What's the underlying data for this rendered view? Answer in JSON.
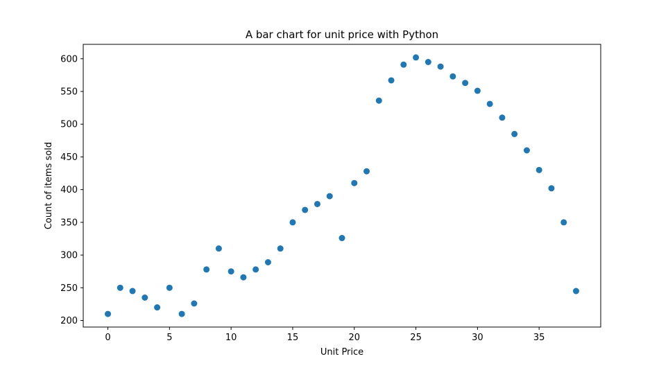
{
  "chart_data": {
    "type": "scatter",
    "title": "A bar chart for unit price with Python",
    "xlabel": "Unit Price",
    "ylabel": "Count of items sold",
    "xlim": [
      -2,
      40
    ],
    "ylim": [
      190,
      622
    ],
    "xticks": [
      0,
      5,
      10,
      15,
      20,
      25,
      30,
      35
    ],
    "yticks": [
      200,
      250,
      300,
      350,
      400,
      450,
      500,
      550,
      600
    ],
    "grid": false,
    "legend": false,
    "marker_color": "#1f77b4",
    "x": [
      0,
      1,
      2,
      3,
      4,
      5,
      6,
      7,
      8,
      9,
      10,
      11,
      12,
      13,
      14,
      15,
      16,
      17,
      18,
      19,
      20,
      21,
      22,
      23,
      24,
      25,
      26,
      27,
      28,
      29,
      30,
      31,
      32,
      33,
      34,
      35,
      36,
      37,
      38
    ],
    "y": [
      210,
      250,
      245,
      235,
      220,
      250,
      210,
      226,
      278,
      310,
      275,
      266,
      278,
      289,
      310,
      350,
      369,
      378,
      390,
      326,
      410,
      428,
      536,
      567,
      591,
      602,
      595,
      588,
      573,
      563,
      551,
      531,
      510,
      485,
      460,
      430,
      402,
      350,
      245
    ]
  }
}
